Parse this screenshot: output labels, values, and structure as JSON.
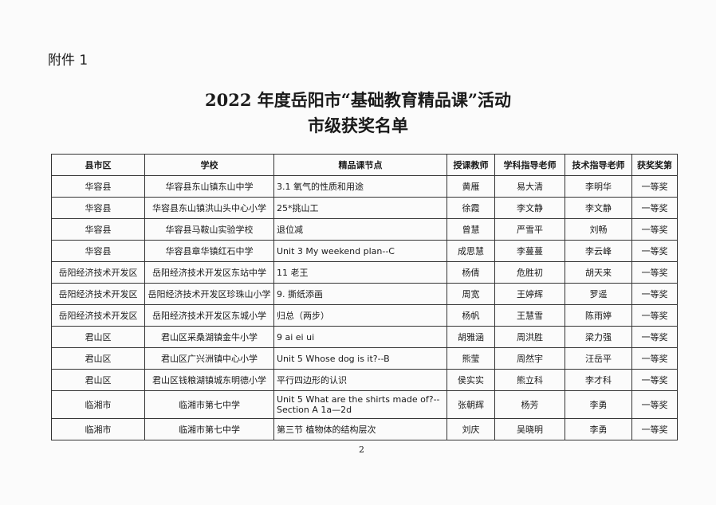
{
  "attachment": "附件 1",
  "title_line1": "2022 年度岳阳市“基础教育精品课”活动",
  "title_line2": "市级获奖名单",
  "headers": [
    "县市区",
    "学校",
    "精品课节点",
    "授课教师",
    "学科指导老师",
    "技术指导老师",
    "获奖奖第"
  ],
  "rows": [
    [
      "华容县",
      "华容县东山镇东山中学",
      "3.1  氧气的性质和用途",
      "黄雁",
      "易大清",
      "李明华",
      "一等奖"
    ],
    [
      "华容县",
      "华容县东山镇洪山头中心小学",
      "25*挑山工",
      "徐霞",
      "李文静",
      "李文静",
      "一等奖"
    ],
    [
      "华容县",
      "华容县马鞍山实验学校",
      "退位减",
      "曾慧",
      "严雪平",
      "刘畅",
      "一等奖"
    ],
    [
      "华容县",
      "华容县章华镇红石中学",
      "Unit 3 My weekend plan--C",
      "成思慧",
      "李蔓蔓",
      "李云峰",
      "一等奖"
    ],
    [
      "岳阳经济技术开发区",
      "岳阳经济技术开发区东站中学",
      "11  老王",
      "杨倩",
      "危胜初",
      "胡天来",
      "一等奖"
    ],
    [
      "岳阳经济技术开发区",
      "岳阳经济技术开发区珍珠山小学",
      "9.  撕纸添画",
      "周宽",
      "王婷辉",
      "罗遥",
      "一等奖"
    ],
    [
      "岳阳经济技术开发区",
      "岳阳经济技术开发区东城小学",
      "归总（两步）",
      "杨帆",
      "王慧雪",
      "陈雨婷",
      "一等奖"
    ],
    [
      "君山区",
      "君山区采桑湖镇金牛小学",
      "9 ai ei ui",
      "胡雅涵",
      "周洪胜",
      "梁力强",
      "一等奖"
    ],
    [
      "君山区",
      "君山区广兴洲镇中心小学",
      "Unit 5 Whose dog is it?--B",
      "熊莹",
      "周然宇",
      "汪岳平",
      "一等奖"
    ],
    [
      "君山区",
      "君山区钱粮湖镇城东明德小学",
      "平行四边形的认识",
      "侯实实",
      "熊立科",
      "李才科",
      "一等奖"
    ],
    [
      "临湘市",
      "临湘市第七中学",
      "Unit 5 What are the shirts made of?--Section A 1a—2d",
      "张朝辉",
      "杨芳",
      "李勇",
      "一等奖"
    ],
    [
      "临湘市",
      "临湘市第七中学",
      "第三节    植物体的结构层次",
      "刘庆",
      "吴晓明",
      "李勇",
      "一等奖"
    ]
  ],
  "page_number": "2"
}
